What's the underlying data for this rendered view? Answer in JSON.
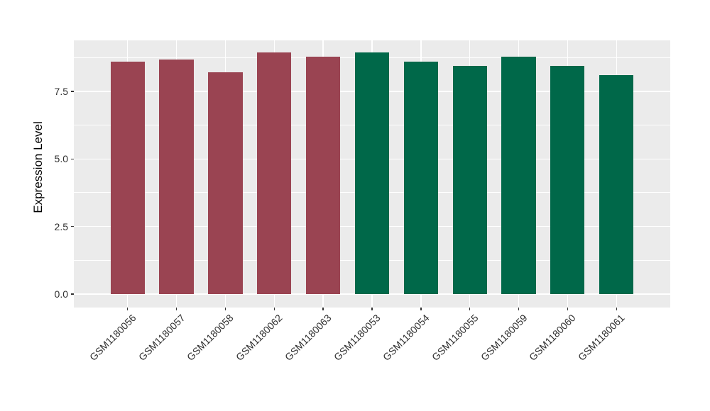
{
  "chart_data": {
    "type": "bar",
    "title": "",
    "xlabel": "",
    "ylabel": "Expression Level",
    "categories": [
      "GSM1180056",
      "GSM1180057",
      "GSM1180058",
      "GSM1180062",
      "GSM1180063",
      "GSM1180053",
      "GSM1180054",
      "GSM1180055",
      "GSM1180059",
      "GSM1180060",
      "GSM1180061"
    ],
    "values": [
      8.59,
      8.69,
      8.21,
      8.95,
      8.78,
      8.94,
      8.6,
      8.45,
      8.79,
      8.44,
      8.1
    ],
    "bar_colors": [
      "#9A4452",
      "#9A4452",
      "#9A4452",
      "#9A4452",
      "#9A4452",
      "#006849",
      "#006849",
      "#006849",
      "#006849",
      "#006849",
      "#006849"
    ],
    "group_colors": {
      "maroon": "#9A4452",
      "green": "#006849"
    },
    "y_ticks": {
      "values": [
        0,
        2.5,
        5,
        7.5
      ],
      "labels": [
        "0.0",
        "2.5",
        "5.0",
        "7.5"
      ]
    },
    "y_minor_ticks": [
      1.25,
      3.75,
      6.25,
      8.75
    ],
    "ylim": [
      -0.5,
      9.39
    ],
    "bar_width_fraction": 0.7,
    "x_expand": 0.6,
    "grid": true,
    "legend_position": "none",
    "panel_background": "#EBEBEB",
    "grid_color": "#FFFFFF",
    "axis_text_angle_x": 45
  }
}
